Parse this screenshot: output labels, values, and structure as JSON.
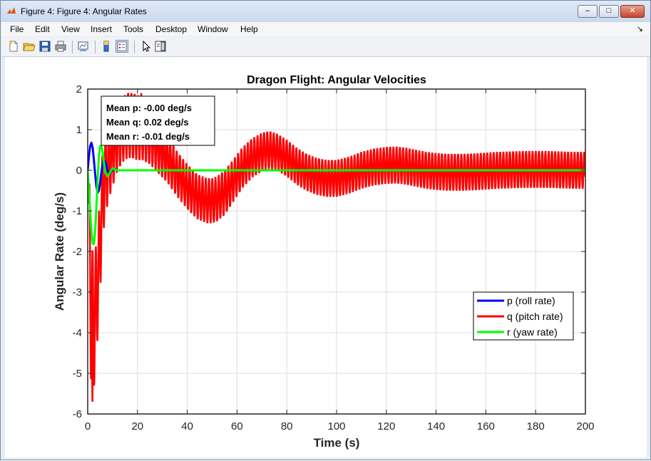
{
  "window": {
    "title": "Figure 4: Figure 4: Angular Rates",
    "controls": {
      "minimize": "–",
      "maximize": "□",
      "close": "✕"
    }
  },
  "menubar": {
    "items": [
      "File",
      "Edit",
      "View",
      "Insert",
      "Tools",
      "Desktop",
      "Window",
      "Help"
    ],
    "dock_arrow": "↘"
  },
  "toolbar": {
    "icons": [
      "new-figure-icon",
      "open-file-icon",
      "save-icon",
      "print-icon",
      "link-plot-icon",
      "colorbar-icon",
      "legend-icon",
      "pointer-icon",
      "property-editor-icon"
    ]
  },
  "annotation": {
    "mean_p": "Mean p: -0.00 deg/s",
    "mean_q": "Mean q: 0.02 deg/s",
    "mean_r": "Mean r: -0.01 deg/s"
  },
  "chart_data": {
    "type": "line",
    "title": "Dragon Flight: Angular Velocities",
    "xlabel": "Time (s)",
    "ylabel": "Angular Rate (deg/s)",
    "xlim": [
      0,
      200
    ],
    "ylim": [
      -6,
      2
    ],
    "xticks": [
      0,
      20,
      40,
      60,
      80,
      100,
      120,
      140,
      160,
      180,
      200
    ],
    "yticks": [
      2,
      1,
      0,
      -1,
      -2,
      -3,
      -4,
      -5,
      -6
    ],
    "grid": true,
    "legend_position": "lower-right",
    "series": [
      {
        "name": "p (roll rate)",
        "color": "#0000ff",
        "x": [
          0,
          0.5,
          1,
          1.5,
          2,
          2.5,
          3,
          3.5,
          4,
          4.5,
          5,
          5.5,
          6,
          6.5,
          7,
          7.5,
          8,
          8.5,
          9,
          10,
          11,
          12,
          14,
          16,
          200
        ],
        "y": [
          0,
          0.35,
          0.6,
          0.68,
          0.55,
          0.25,
          -0.1,
          -0.4,
          -0.55,
          -0.5,
          -0.3,
          -0.05,
          0.15,
          0.25,
          0.22,
          0.12,
          0.0,
          -0.08,
          -0.08,
          0.03,
          0.03,
          0.0,
          0.0,
          0.0,
          0.0
        ]
      },
      {
        "name": "q (pitch rate)",
        "color": "#ff0000",
        "envelope": {
          "x": [
            0,
            1,
            1.5,
            2,
            3,
            4,
            5,
            6,
            7,
            8,
            9,
            10,
            12,
            14,
            16,
            18,
            20,
            22,
            25,
            28,
            32,
            36,
            40,
            44,
            48,
            50,
            52,
            55,
            58,
            62,
            66,
            70,
            73,
            76,
            80,
            84,
            88,
            92,
            96,
            100,
            105,
            110,
            115,
            120,
            124,
            128,
            132,
            136,
            140,
            145,
            150,
            155,
            160,
            165,
            170,
            175,
            180,
            185,
            190,
            195,
            200
          ],
          "center": [
            0,
            -2.5,
            -3.5,
            -3.9,
            -3.5,
            -2.8,
            -1.8,
            -0.6,
            -0.1,
            0.1,
            0.3,
            0.45,
            0.8,
            1.0,
            1.1,
            1.1,
            1.05,
            1.0,
            0.85,
            0.6,
            0.3,
            -0.1,
            -0.4,
            -0.65,
            -0.75,
            -0.75,
            -0.7,
            -0.55,
            -0.3,
            0.05,
            0.3,
            0.45,
            0.5,
            0.45,
            0.3,
            0.1,
            -0.05,
            -0.15,
            -0.2,
            -0.2,
            -0.12,
            0.0,
            0.08,
            0.12,
            0.13,
            0.1,
            0.05,
            0.0,
            -0.03,
            -0.05,
            -0.05,
            -0.04,
            -0.02,
            0.0,
            0.01,
            0.02,
            0.02,
            0.02,
            0.01,
            0.0,
            0.0
          ],
          "half_amp": [
            0,
            2.0,
            2.0,
            1.85,
            1.5,
            1.3,
            1.2,
            1.1,
            1.0,
            0.95,
            0.9,
            0.85,
            0.8,
            0.8,
            0.8,
            0.8,
            0.8,
            0.75,
            0.7,
            0.65,
            0.6,
            0.55,
            0.55,
            0.55,
            0.55,
            0.55,
            0.55,
            0.55,
            0.52,
            0.5,
            0.48,
            0.47,
            0.46,
            0.45,
            0.45,
            0.45,
            0.45,
            0.45,
            0.45,
            0.45,
            0.45,
            0.45,
            0.45,
            0.45,
            0.45,
            0.45,
            0.45,
            0.45,
            0.45,
            0.45,
            0.45,
            0.45,
            0.45,
            0.45,
            0.45,
            0.45,
            0.45,
            0.45,
            0.45,
            0.45,
            0.45
          ]
        },
        "extremes": {
          "min": {
            "x": 1.9,
            "y": -5.7
          },
          "max": {
            "x": 21.5,
            "y": 1.9
          }
        },
        "oscillation_period_s": 1.3
      },
      {
        "name": "r (yaw rate)",
        "color": "#00ff00",
        "x": [
          0,
          0.5,
          1,
          1.5,
          2,
          2.5,
          3,
          3.5,
          4,
          4.5,
          5,
          5.5,
          6,
          6.5,
          7,
          8,
          9,
          10,
          11,
          12,
          14,
          16,
          200
        ],
        "y": [
          0,
          -0.5,
          -1.0,
          -1.5,
          -1.8,
          -1.82,
          -1.5,
          -0.9,
          -0.2,
          0.35,
          0.6,
          0.6,
          0.45,
          0.2,
          -0.05,
          -0.15,
          -0.05,
          0.05,
          0.02,
          0.0,
          0.0,
          0.0,
          0.0
        ]
      }
    ]
  }
}
